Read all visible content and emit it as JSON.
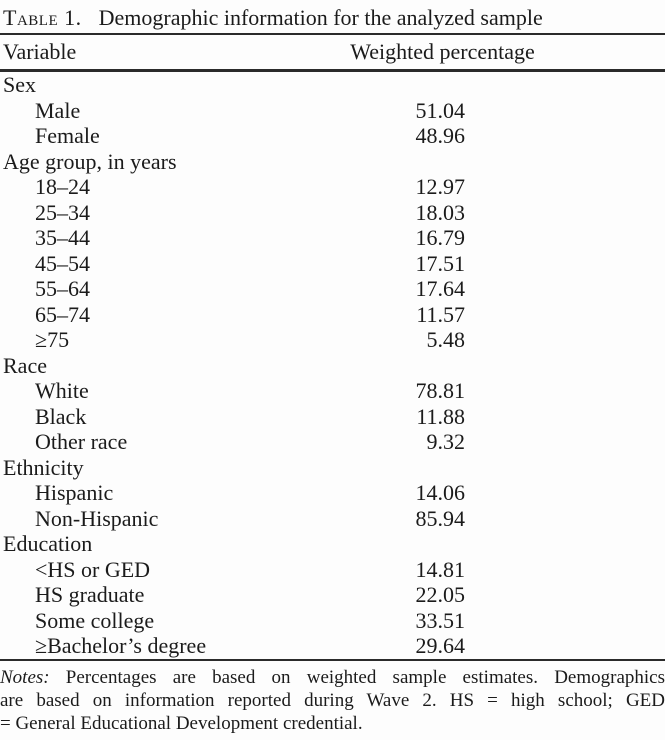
{
  "title": {
    "label": "Table 1.",
    "text": "Demographic information for the analyzed sample"
  },
  "table": {
    "columns": [
      "Variable",
      "Weighted percentage"
    ],
    "rows": [
      {
        "label": "Sex",
        "value": "",
        "indent": false
      },
      {
        "label": "Male",
        "value": "51.04",
        "indent": true
      },
      {
        "label": "Female",
        "value": "48.96",
        "indent": true
      },
      {
        "label": "Age group, in years",
        "value": "",
        "indent": false
      },
      {
        "label": "18–24",
        "value": "12.97",
        "indent": true
      },
      {
        "label": "25–34",
        "value": "18.03",
        "indent": true
      },
      {
        "label": "35–44",
        "value": "16.79",
        "indent": true
      },
      {
        "label": "45–54",
        "value": "17.51",
        "indent": true
      },
      {
        "label": "55–64",
        "value": "17.64",
        "indent": true
      },
      {
        "label": "65–74",
        "value": "11.57",
        "indent": true
      },
      {
        "label": "≥75",
        "value": "5.48",
        "indent": true
      },
      {
        "label": "Race",
        "value": "",
        "indent": false
      },
      {
        "label": "White",
        "value": "78.81",
        "indent": true
      },
      {
        "label": "Black",
        "value": "11.88",
        "indent": true
      },
      {
        "label": "Other race",
        "value": "9.32",
        "indent": true
      },
      {
        "label": "Ethnicity",
        "value": "",
        "indent": false
      },
      {
        "label": "Hispanic",
        "value": "14.06",
        "indent": true
      },
      {
        "label": "Non-Hispanic",
        "value": "85.94",
        "indent": true
      },
      {
        "label": "Education",
        "value": "",
        "indent": false
      },
      {
        "label": "<HS or GED",
        "value": "14.81",
        "indent": true
      },
      {
        "label": "HS graduate",
        "value": "22.05",
        "indent": true
      },
      {
        "label": "Some college",
        "value": "33.51",
        "indent": true
      },
      {
        "label": "≥Bachelor’s degree",
        "value": "29.64",
        "indent": true
      }
    ]
  },
  "notes": {
    "label": "Notes:",
    "lines": [
      "Percentages are based on weighted sample estimates. Demographics",
      "are based on information reported during Wave 2. HS = high school; GED",
      "= General Educational Development credential."
    ]
  }
}
